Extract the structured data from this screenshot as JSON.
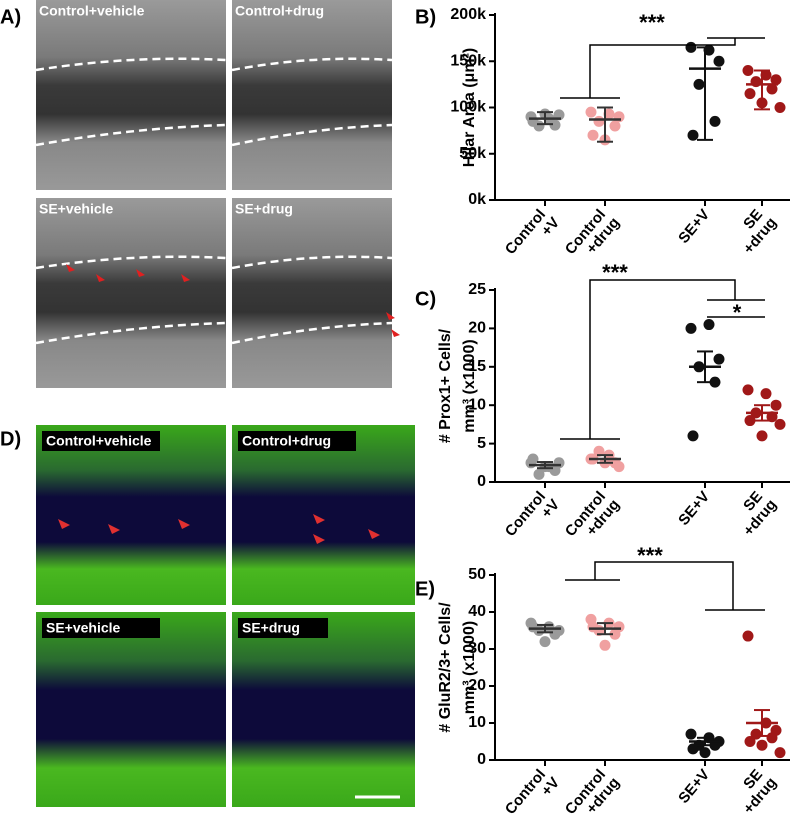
{
  "panel_labels": [
    "A)",
    "B)",
    "C)",
    "D)",
    "E)"
  ],
  "images_a": [
    "Control+vehicle",
    "Control+drug",
    "SE+vehicle",
    "SE+drug"
  ],
  "images_d": [
    "Control+vehicle",
    "Control+drug",
    "SE+vehicle",
    "SE+drug"
  ],
  "chart_data": [
    {
      "type": "dot",
      "ylabel": [
        "Hilar Area (μm²)"
      ],
      "categories": [
        [
          "Control",
          "+V"
        ],
        [
          "Control",
          "+drug"
        ],
        [
          "SE+V"
        ],
        [
          "SE",
          "+drug"
        ]
      ],
      "colors": [
        "#9a9a9a",
        "#f0a0a0",
        "#111111",
        "#a01818"
      ],
      "points": [
        [
          90000,
          88000,
          92000,
          80000,
          81000,
          85000,
          93000
        ],
        [
          95000,
          93000,
          90000,
          85000,
          80000,
          70000,
          65000
        ],
        [
          165000,
          162000,
          150000,
          125000,
          85000,
          70000
        ],
        [
          140000,
          135000,
          130000,
          128000,
          120000,
          115000,
          105000,
          100000
        ]
      ],
      "means": [
        88000,
        87000,
        142000,
        125000
      ],
      "whisker_low": [
        82000,
        63000,
        65000,
        98000
      ],
      "whisker_high": [
        95000,
        100000,
        165000,
        140000
      ],
      "ylim": [
        0,
        200000
      ],
      "yticks": [
        {
          "value": 0,
          "label": "0k"
        },
        {
          "value": 50000,
          "label": "50k"
        },
        {
          "value": 100000,
          "label": "100k"
        },
        {
          "value": 150000,
          "label": "150k"
        },
        {
          "value": 200000,
          "label": "200k"
        }
      ],
      "annotations": [
        "***"
      ]
    },
    {
      "type": "dot",
      "ylabel": [
        "# Prox1+ Cells/",
        "mm³ (x1000)"
      ],
      "categories": [
        [
          "Control",
          "+V"
        ],
        [
          "Control",
          "+drug"
        ],
        [
          "SE+V"
        ],
        [
          "SE",
          "+drug"
        ]
      ],
      "colors": [
        "#9a9a9a",
        "#f0a0a0",
        "#111111",
        "#a01818"
      ],
      "points": [
        [
          2.5,
          2,
          2.5,
          1,
          1.5,
          3,
          2
        ],
        [
          3,
          3.5,
          2,
          4,
          2.5,
          3,
          2.5
        ],
        [
          20,
          20.5,
          16,
          15,
          13,
          6
        ],
        [
          12,
          11.5,
          10,
          9,
          8.5,
          8,
          6,
          7.5
        ]
      ],
      "means": [
        2.2,
        3,
        15,
        9
      ],
      "whisker_low": [
        1.8,
        2.5,
        13,
        8
      ],
      "whisker_high": [
        2.6,
        3.5,
        17,
        10
      ],
      "ylim": [
        0,
        25
      ],
      "yticks": [
        0,
        5,
        10,
        15,
        20,
        25
      ],
      "annotations": [
        "***",
        "*"
      ]
    },
    {
      "type": "dot",
      "ylabel": [
        "# GluR2/3+ Cells/",
        "mm³ (x1000)"
      ],
      "categories": [
        [
          "Control",
          "+V"
        ],
        [
          "Control",
          "+drug"
        ],
        [
          "SE+V"
        ],
        [
          "SE",
          "+drug"
        ]
      ],
      "colors": [
        "#9a9a9a",
        "#f0a0a0",
        "#111111",
        "#a01818"
      ],
      "points": [
        [
          37,
          36,
          35,
          35,
          34,
          36,
          32
        ],
        [
          38,
          37,
          36,
          35,
          34,
          36,
          31
        ],
        [
          7,
          6,
          5,
          4,
          4,
          3,
          2
        ],
        [
          33.5,
          10,
          8,
          7,
          6,
          5,
          4,
          2
        ]
      ],
      "means": [
        35.5,
        35.5,
        5,
        10
      ],
      "whisker_low": [
        34.5,
        34,
        4,
        6.5
      ],
      "whisker_high": [
        36.5,
        37,
        6,
        13.5
      ],
      "ylim": [
        0,
        50
      ],
      "yticks": [
        0,
        10,
        20,
        30,
        40,
        50
      ],
      "annotations": [
        "***"
      ]
    }
  ]
}
